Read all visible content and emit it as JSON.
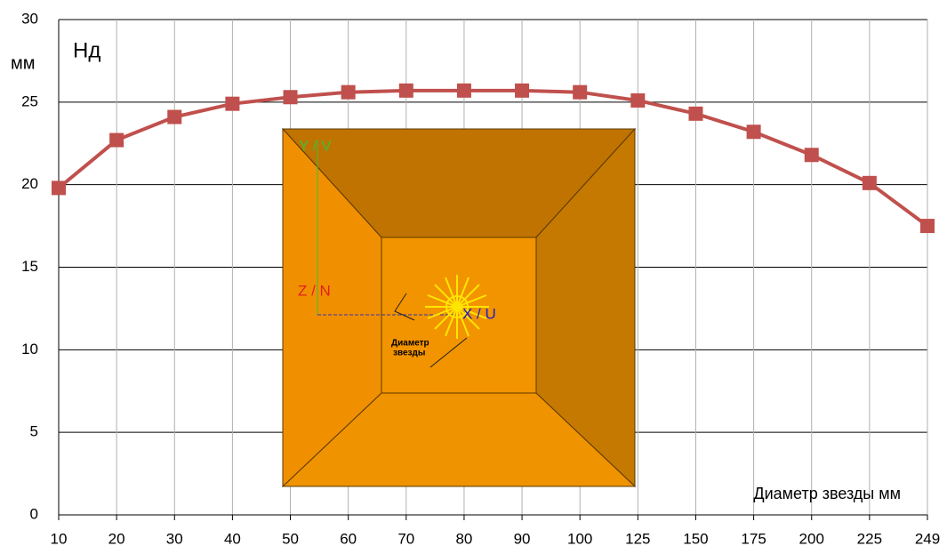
{
  "chart_data": {
    "type": "line",
    "y_label": "мм",
    "series_label": "Нд",
    "x_label": "Диаметр звезды мм",
    "categories": [
      "10",
      "20",
      "30",
      "40",
      "50",
      "60",
      "70",
      "80",
      "90",
      "100",
      "125",
      "150",
      "175",
      "200",
      "225",
      "249"
    ],
    "series": [
      {
        "name": "Нд",
        "color": "#c0504d",
        "values": [
          19.8,
          22.7,
          24.1,
          24.9,
          25.3,
          25.6,
          25.7,
          25.7,
          25.7,
          25.6,
          25.1,
          24.3,
          23.2,
          21.8,
          20.1,
          17.5
        ]
      }
    ],
    "ylim": [
      0,
      30
    ],
    "yticks": [
      0,
      5,
      10,
      15,
      20,
      25,
      30
    ],
    "grid": true,
    "inset_labels": {
      "y": "Y / V",
      "z": "Z / N",
      "x": "X / U",
      "caption": [
        "Диаметр",
        "звезды"
      ]
    }
  }
}
